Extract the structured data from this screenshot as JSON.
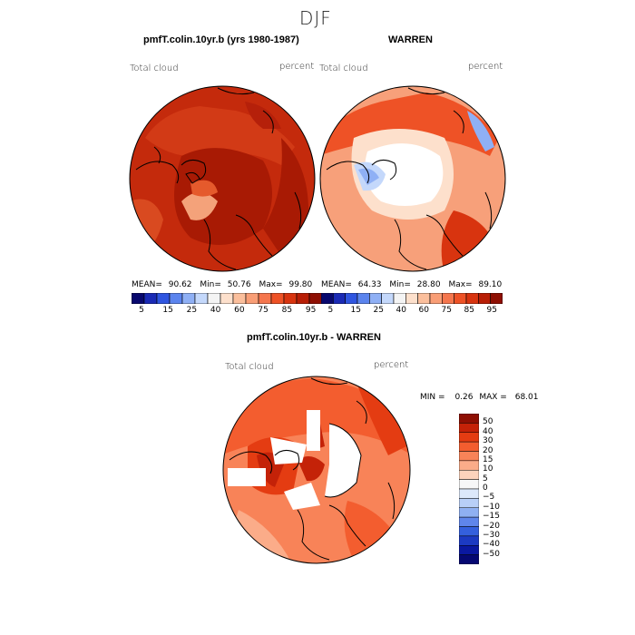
{
  "page_title": "DJF",
  "panels": [
    {
      "title": "pmfT.colin.10yr.b (yrs 1980-1987)",
      "left_label": "Total cloud",
      "right_label": "percent",
      "stats": {
        "mean_label": "MEAN=",
        "mean": "90.62",
        "min_label": "Min=",
        "min": "50.76",
        "max_label": "Max=",
        "max": "99.80"
      }
    },
    {
      "title": "WARREN",
      "left_label": "Total cloud",
      "right_label": "percent",
      "stats": {
        "mean_label": "MEAN=",
        "mean": "64.33",
        "min_label": "Min=",
        "min": "28.80",
        "max_label": "Max=",
        "max": "89.10"
      }
    },
    {
      "title": "pmfT.colin.10yr.b - WARREN",
      "left_label": "Total cloud",
      "right_label": "percent",
      "stats": {
        "min_label": "MIN =",
        "min": "0.26",
        "max_label": "MAX =",
        "max": "68.01"
      }
    }
  ],
  "colorbar_top": {
    "colors": [
      "#08086e",
      "#1a2ab5",
      "#2f55e0",
      "#5b84ee",
      "#8fb0f5",
      "#c4d8fb",
      "#f4f4f4",
      "#fde0cc",
      "#fbbf9c",
      "#f99e76",
      "#f5764d",
      "#ee5226",
      "#d8340f",
      "#b81e06",
      "#8e0f03"
    ],
    "tick_labels": [
      "5",
      "15",
      "25",
      "40",
      "60",
      "75",
      "85",
      "95"
    ]
  },
  "colorbar_diff": {
    "colors": [
      "#8e0f03",
      "#c42208",
      "#e43c12",
      "#f35d2f",
      "#f88358",
      "#fbac89",
      "#fdd3bc",
      "#f7f7f7",
      "#dce8fb",
      "#b8cff7",
      "#8fb0f2",
      "#5f86eb",
      "#3460dd",
      "#1c3ac2",
      "#0a18a0",
      "#050872"
    ],
    "tick_labels": [
      "50",
      "40",
      "30",
      "20",
      "15",
      "10",
      "5",
      "0",
      "−5",
      "−10",
      "−15",
      "−20",
      "−30",
      "−40",
      "−50"
    ]
  }
}
